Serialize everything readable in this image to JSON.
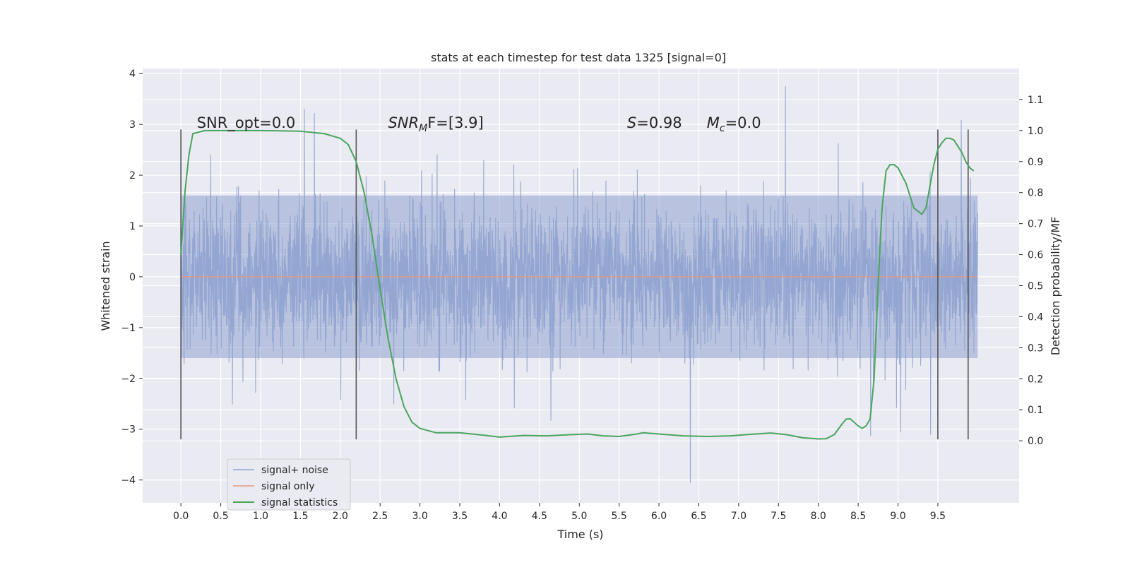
{
  "chart_data": {
    "type": "line",
    "title": "stats at each timestep for test data 1325 [signal=0]",
    "xlabel": "Time (s)",
    "ylabel": "Whitened strain",
    "ylabel_right": "Detection probability/MF",
    "xlim": [
      -0.48,
      10.52
    ],
    "ylim": [
      -4.45,
      4.1
    ],
    "ylim_right": [
      -0.2,
      1.2
    ],
    "x_ticks": [
      "0.0",
      "0.5",
      "1.0",
      "1.5",
      "2.0",
      "2.5",
      "3.0",
      "3.5",
      "4.0",
      "4.5",
      "5.0",
      "5.5",
      "6.0",
      "6.5",
      "7.0",
      "7.5",
      "8.0",
      "8.5",
      "9.0",
      "9.5"
    ],
    "y_ticks": [
      "−4",
      "−3",
      "−2",
      "−1",
      "0",
      "1",
      "2",
      "3",
      "4"
    ],
    "y_ticks_right": [
      "0.0",
      "0.1",
      "0.2",
      "0.3",
      "0.4",
      "0.5",
      "0.6",
      "0.7",
      "0.8",
      "0.9",
      "1.0",
      "1.1"
    ],
    "grid": true,
    "legend_position": "lower-left",
    "annotations": [
      {
        "x": 0.2,
        "y": 2.93,
        "text": "SNR_opt=0.0",
        "italic": false
      },
      {
        "x": 2.6,
        "y": 2.93,
        "text": "SNR",
        "sub": "M",
        "rest": "F=[3.9]",
        "italic": true
      },
      {
        "x": 5.6,
        "y": 2.93,
        "text": "S",
        "rest": "=0.98",
        "italic": true
      },
      {
        "x": 6.6,
        "y": 2.93,
        "text": "M",
        "sub": "c",
        "rest": "=0.0",
        "italic": true
      }
    ],
    "vlines": [
      0.0,
      2.2,
      9.5,
      9.88
    ],
    "vline_range": [
      -3.2,
      2.9
    ],
    "noise": {
      "x_start": 0.0,
      "x_end": 10.0,
      "band": 1.6,
      "min": -4.05,
      "max": 3.75
    },
    "series": [
      {
        "name": "signal+ noise",
        "color": "#8fa3cf",
        "values": []
      },
      {
        "name": "signal only",
        "color": "#e39a7f",
        "x": [
          0.0,
          10.0
        ],
        "values": [
          0.0,
          0.0
        ]
      },
      {
        "name": "signal statistics",
        "color": "#4aa55e",
        "axis": "right",
        "x": [
          0.0,
          0.05,
          0.1,
          0.15,
          0.3,
          0.6,
          1.0,
          1.5,
          1.8,
          2.0,
          2.1,
          2.2,
          2.3,
          2.4,
          2.5,
          2.6,
          2.7,
          2.8,
          2.9,
          3.0,
          3.2,
          3.5,
          3.8,
          4.0,
          4.3,
          4.6,
          4.9,
          5.1,
          5.3,
          5.5,
          5.7,
          5.8,
          6.0,
          6.3,
          6.6,
          6.9,
          7.1,
          7.4,
          7.6,
          7.8,
          8.0,
          8.1,
          8.2,
          8.3,
          8.35,
          8.4,
          8.5,
          8.55,
          8.6,
          8.65,
          8.7,
          8.75,
          8.8,
          8.85,
          8.9,
          8.95,
          9.0,
          9.1,
          9.2,
          9.3,
          9.35,
          9.4,
          9.45,
          9.5,
          9.55,
          9.6,
          9.65,
          9.7,
          9.75,
          9.8,
          9.85,
          9.9,
          9.95
        ],
        "values": [
          0.6,
          0.8,
          0.92,
          0.99,
          1.0,
          1.0,
          1.0,
          0.998,
          0.99,
          0.975,
          0.955,
          0.9,
          0.8,
          0.66,
          0.49,
          0.33,
          0.2,
          0.11,
          0.06,
          0.04,
          0.026,
          0.026,
          0.018,
          0.012,
          0.017,
          0.016,
          0.02,
          0.022,
          0.016,
          0.014,
          0.021,
          0.026,
          0.022,
          0.016,
          0.014,
          0.016,
          0.02,
          0.025,
          0.02,
          0.01,
          0.006,
          0.007,
          0.02,
          0.055,
          0.07,
          0.071,
          0.048,
          0.04,
          0.048,
          0.07,
          0.2,
          0.5,
          0.75,
          0.87,
          0.89,
          0.89,
          0.88,
          0.83,
          0.75,
          0.73,
          0.75,
          0.82,
          0.89,
          0.94,
          0.96,
          0.975,
          0.975,
          0.97,
          0.95,
          0.93,
          0.9,
          0.88,
          0.87
        ]
      }
    ]
  }
}
